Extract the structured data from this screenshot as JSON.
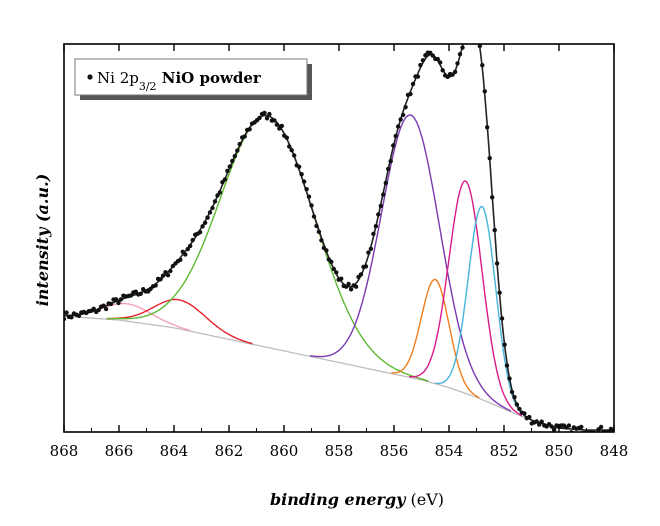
{
  "chart_data": {
    "type": "line",
    "xlabel_italic": "binding energy",
    "xlabel_unit": " (eV)",
    "ylabel": "intensity (a.u.)",
    "xlim": [
      868,
      848
    ],
    "x_reversed": true,
    "xticks": [
      868,
      866,
      864,
      862,
      860,
      858,
      856,
      854,
      852,
      850,
      848
    ],
    "ylim": [
      0,
      1
    ],
    "y_ticks_labeled": false,
    "grid": false,
    "legend": {
      "placement": "top-left",
      "marker": "black-dot",
      "text_base": "Ni 2p",
      "text_sub": "3/2",
      "text_rest": " NiO powder"
    },
    "background": {
      "name": "background",
      "color": "#bdbdbd",
      "x": [
        868,
        866,
        864,
        862,
        860,
        858,
        856,
        855,
        854,
        853,
        852,
        851,
        850,
        849,
        848
      ],
      "y": [
        0.3,
        0.29,
        0.27,
        0.24,
        0.21,
        0.18,
        0.15,
        0.135,
        0.115,
        0.09,
        0.06,
        0.03,
        0.01,
        0.005,
        0.005
      ]
    },
    "components": [
      {
        "name": "peak-866",
        "color": "#f2a2c0",
        "center": 865.7,
        "amp": 0.045,
        "sigma": 0.9
      },
      {
        "name": "peak-863.8",
        "color": "#e8202a",
        "center": 863.8,
        "amp": 0.075,
        "sigma": 0.95
      },
      {
        "name": "peak-860.6",
        "color": "#5fb832",
        "center": 860.6,
        "amp": 0.6,
        "sigma": 1.7
      },
      {
        "name": "peak-855.4",
        "color": "#7a38b0",
        "center": 855.4,
        "amp": 0.68,
        "sigma": 1.05
      },
      {
        "name": "peak-854.5",
        "color": "#f07d1c",
        "center": 854.5,
        "amp": 0.27,
        "sigma": 0.5
      },
      {
        "name": "peak-853.4",
        "color": "#d81b87",
        "center": 853.4,
        "amp": 0.55,
        "sigma": 0.6
      },
      {
        "name": "peak-852.8",
        "color": "#48b4dc",
        "center": 852.8,
        "amp": 0.5,
        "sigma": 0.5
      }
    ],
    "envelope": {
      "name": "fit-envelope",
      "color": "#222222"
    },
    "data_points": {
      "name": "experimental-points",
      "color": "#111111",
      "step": 0.09
    }
  }
}
